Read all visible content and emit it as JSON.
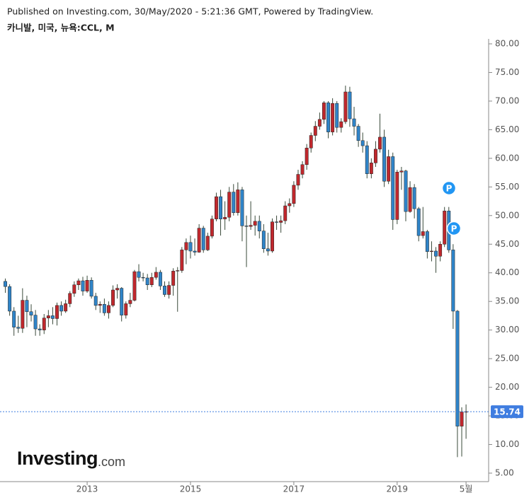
{
  "header": {
    "published": "Published on Investing.com, 30/May/2020 - 5:21:36 GMT, Powered by TradingView.",
    "symbol": "카니발, 미국, 뉴욕:CCL, M"
  },
  "logo": {
    "main": "Investing",
    "suffix": ".com"
  },
  "markers": [
    {
      "label": "P"
    },
    {
      "label": "P"
    }
  ],
  "chart_data": {
    "type": "candlestick",
    "categories": [
      null,
      null,
      null,
      null,
      null,
      null,
      null,
      null,
      null,
      null,
      null,
      null,
      null,
      null,
      null,
      null,
      null,
      null,
      null,
      "2013",
      null,
      null,
      null,
      null,
      null,
      null,
      null,
      null,
      null,
      null,
      null,
      null,
      null,
      null,
      null,
      null,
      null,
      null,
      null,
      null,
      null,
      null,
      null,
      "2015",
      null,
      null,
      null,
      null,
      null,
      null,
      null,
      null,
      null,
      null,
      null,
      null,
      null,
      null,
      null,
      null,
      null,
      null,
      null,
      null,
      null,
      null,
      null,
      "2017",
      null,
      null,
      null,
      null,
      null,
      null,
      null,
      null,
      null,
      null,
      null,
      null,
      null,
      null,
      null,
      null,
      null,
      null,
      null,
      null,
      null,
      null,
      null,
      "2019",
      null,
      null,
      null,
      null,
      null,
      null,
      null,
      null,
      null,
      null,
      null,
      null,
      null,
      null,
      null,
      "5월"
    ],
    "open": [
      38.5,
      37.6,
      33.3,
      30.5,
      30.3,
      35.2,
      33.2,
      32.6,
      30.2,
      30.0,
      32.1,
      32.5,
      32.0,
      34.3,
      33.3,
      34.6,
      36.4,
      37.9,
      38.6,
      36.8,
      38.7,
      35.9,
      34.3,
      34.5,
      33.0,
      34.3,
      37.0,
      37.3,
      32.6,
      34.6,
      35.2,
      40.2,
      39.2,
      39.1,
      37.9,
      39.2,
      40.1,
      37.7,
      36.2,
      37.8,
      40.3,
      40.4,
      44.0,
      45.3,
      43.8,
      43.6,
      47.8,
      44.0,
      46.4,
      49.4,
      53.3,
      49.4,
      49.7,
      54.1,
      50.5,
      54.5,
      48.2,
      48.1,
      48.3,
      49.0,
      47.3,
      44.2,
      43.8,
      48.9,
      48.8,
      49.1,
      51.7,
      52.1,
      55.3,
      57.2,
      58.9,
      61.8,
      64.0,
      65.6,
      66.8,
      69.7,
      64.6,
      69.6,
      65.4,
      66.4,
      71.6,
      66.9,
      65.6,
      63.1,
      62.2,
      57.3,
      59.2,
      61.6,
      63.7,
      56.0,
      60.3,
      49.3,
      57.6,
      57.8,
      50.7,
      54.9,
      51.2,
      46.5,
      47.2,
      43.7,
      43.8,
      42.9,
      45.0,
      50.8,
      44.0,
      33.3,
      13.2,
      15.7
    ],
    "high": [
      39.0,
      38.0,
      34.0,
      32.5,
      37.3,
      36.0,
      34.5,
      33.5,
      31.0,
      32.8,
      33.5,
      34.0,
      34.8,
      35.0,
      35.3,
      36.8,
      38.5,
      39.0,
      39.3,
      39.5,
      39.2,
      36.5,
      35.0,
      35.5,
      35.0,
      37.8,
      38.0,
      37.5,
      35.0,
      36.5,
      40.5,
      41.5,
      40.0,
      39.8,
      40.0,
      41.0,
      40.5,
      38.5,
      38.5,
      40.8,
      41.0,
      44.5,
      46.0,
      46.5,
      46.0,
      48.5,
      48.2,
      47.0,
      50.0,
      54.0,
      54.5,
      52.5,
      55.0,
      55.5,
      55.8,
      55.0,
      50.0,
      52.5,
      50.0,
      50.0,
      48.5,
      47.0,
      49.5,
      50.0,
      50.0,
      52.5,
      53.0,
      56.0,
      58.0,
      59.5,
      62.5,
      64.5,
      66.5,
      68.0,
      70.0,
      70.0,
      70.5,
      70.0,
      67.0,
      72.7,
      72.5,
      69.0,
      66.0,
      64.5,
      63.0,
      60.0,
      63.0,
      67.8,
      65.0,
      61.5,
      61.0,
      58.0,
      58.5,
      58.0,
      56.0,
      55.5,
      51.5,
      51.5,
      47.5,
      45.5,
      44.5,
      45.5,
      51.5,
      51.5,
      45.0,
      33.5,
      16.5,
      17.0
    ],
    "low": [
      36.5,
      32.5,
      29.0,
      29.5,
      29.5,
      30.5,
      31.5,
      29.0,
      29.0,
      29.3,
      30.5,
      31.0,
      30.8,
      32.5,
      33.0,
      34.0,
      35.8,
      37.0,
      36.0,
      36.5,
      35.5,
      33.5,
      33.0,
      32.5,
      32.0,
      34.0,
      35.5,
      31.5,
      32.0,
      34.0,
      35.0,
      38.5,
      38.5,
      37.0,
      37.5,
      38.8,
      37.0,
      35.8,
      35.5,
      36.0,
      33.2,
      40.0,
      41.5,
      42.5,
      43.0,
      43.5,
      43.5,
      43.8,
      46.0,
      49.0,
      46.5,
      47.5,
      49.0,
      50.0,
      50.0,
      45.5,
      41.0,
      47.5,
      46.5,
      46.0,
      43.5,
      43.0,
      43.5,
      47.5,
      47.0,
      48.5,
      50.5,
      51.5,
      54.5,
      56.5,
      58.0,
      61.0,
      63.0,
      65.0,
      66.0,
      63.5,
      64.0,
      64.5,
      64.5,
      66.0,
      65.5,
      64.0,
      62.0,
      61.0,
      56.5,
      56.5,
      58.5,
      61.0,
      55.0,
      55.5,
      47.5,
      48.5,
      54.5,
      49.0,
      50.5,
      49.5,
      45.5,
      46.0,
      42.5,
      42.0,
      40.0,
      42.0,
      44.5,
      43.5,
      30.2,
      7.8,
      7.9,
      11.0
    ],
    "close": [
      37.6,
      33.3,
      30.5,
      30.3,
      35.2,
      33.2,
      32.6,
      30.2,
      30.0,
      32.1,
      32.5,
      32.0,
      34.3,
      33.3,
      34.6,
      36.4,
      37.9,
      38.6,
      36.8,
      38.7,
      35.9,
      34.3,
      34.5,
      33.0,
      34.3,
      37.0,
      37.3,
      32.6,
      34.6,
      35.2,
      40.2,
      39.2,
      39.1,
      37.9,
      39.2,
      40.1,
      37.7,
      36.2,
      37.8,
      40.3,
      40.4,
      44.0,
      45.3,
      43.8,
      43.6,
      47.8,
      44.0,
      46.4,
      49.4,
      53.3,
      49.4,
      49.7,
      54.1,
      50.5,
      54.5,
      48.2,
      48.1,
      48.3,
      49.0,
      47.3,
      44.2,
      43.8,
      48.9,
      48.8,
      49.1,
      51.7,
      52.1,
      55.3,
      57.2,
      58.9,
      61.8,
      64.0,
      65.6,
      66.8,
      69.7,
      64.6,
      69.6,
      65.4,
      66.4,
      71.6,
      66.9,
      65.6,
      63.1,
      62.2,
      57.3,
      59.2,
      61.6,
      63.7,
      56.0,
      60.3,
      49.3,
      57.6,
      57.8,
      50.7,
      54.9,
      51.2,
      46.5,
      47.2,
      43.7,
      43.8,
      42.9,
      45.0,
      50.8,
      44.0,
      33.3,
      13.2,
      15.7,
      15.74
    ],
    "up_color": "#c0282d",
    "down_color": "#2f84c8",
    "last_price_color": "#3f7de0",
    "ylim": [
      5,
      80
    ],
    "yticks": [
      {
        "value": 5,
        "label": "5.00"
      },
      {
        "value": 10,
        "label": "10.00"
      },
      {
        "value": 15,
        "label": "15.00"
      },
      {
        "value": 20,
        "label": "20.00"
      },
      {
        "value": 25,
        "label": "25.00"
      },
      {
        "value": 30,
        "label": "30.00"
      },
      {
        "value": 35,
        "label": "35.00"
      },
      {
        "value": 40,
        "label": "40.00"
      },
      {
        "value": 45,
        "label": "45.00"
      },
      {
        "value": 50,
        "label": "50.00"
      },
      {
        "value": 55,
        "label": "55.00"
      },
      {
        "value": 60,
        "label": "60.00"
      },
      {
        "value": 65,
        "label": "65.00"
      },
      {
        "value": 70,
        "label": "70.00"
      },
      {
        "value": 75,
        "label": "75.00"
      },
      {
        "value": 80,
        "label": "80.00"
      }
    ]
  }
}
